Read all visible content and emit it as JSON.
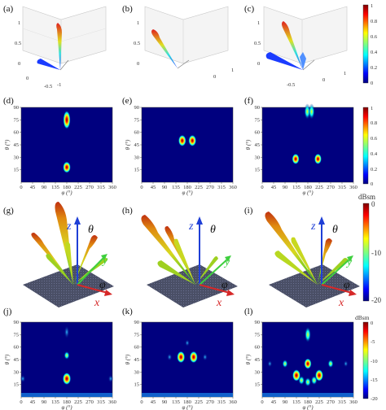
{
  "panel_labels": [
    "(a)",
    "(b)",
    "(c)",
    "(d)",
    "(e)",
    "(f)",
    "(g)",
    "(h)",
    "(i)",
    "(j)",
    "(k)",
    "(l)"
  ],
  "row1_3d": {
    "z_ticks": [
      "1",
      "0.5",
      "0"
    ],
    "x_ticks": [
      "-0.5",
      "-1"
    ],
    "y_ticks": [
      "0",
      "1"
    ],
    "panel_a_left_ticks": [
      "0"
    ],
    "panel_c_extra_ticks": [
      "-0.5",
      "0",
      "1"
    ]
  },
  "heatmap_axes": {
    "xlabel": "φ (°)",
    "ylabel": "θ (°)",
    "x_ticks": [
      "0",
      "45",
      "90",
      "135",
      "180",
      "225",
      "270",
      "315",
      "360"
    ],
    "y_ticks": [
      "90",
      "75",
      "60",
      "45",
      "30",
      "15"
    ]
  },
  "colorbar_norm": {
    "ticks": [
      "1",
      "0.8",
      "0.6",
      "0.4",
      "0.2",
      "0"
    ]
  },
  "colorbar_dbsm_3d": {
    "unit": "dBsm",
    "ticks": [
      "0",
      "-10",
      "-20"
    ]
  },
  "colorbar_dbsm_2d": {
    "unit": "dBsm",
    "ticks": [
      "0",
      "-5",
      "-10",
      "-15",
      "-20"
    ]
  },
  "axes3d_labels": {
    "z": "z",
    "theta": "θ",
    "y": "y",
    "phi": "φ",
    "x": "x"
  },
  "colors": {
    "background_map": "#00007f",
    "axis_z": "#1f3fd6",
    "axis_y": "#3ecf3e",
    "axis_x": "#d62828",
    "plate": "#4a4f66"
  },
  "chart_data": [
    {
      "panel": "(d)",
      "type": "heatmap",
      "xlim": [
        0,
        360
      ],
      "ylim": [
        0,
        90
      ],
      "hotspots": [
        {
          "phi": 180,
          "theta": 18,
          "level": 0.9
        },
        {
          "phi": 180,
          "theta": 75,
          "level": 0.8
        }
      ]
    },
    {
      "panel": "(e)",
      "type": "heatmap",
      "xlim": [
        0,
        360
      ],
      "ylim": [
        0,
        90
      ],
      "hotspots": [
        {
          "phi": 160,
          "theta": 50,
          "level": 0.9
        },
        {
          "phi": 200,
          "theta": 50,
          "level": 0.9
        }
      ]
    },
    {
      "panel": "(f)",
      "type": "heatmap",
      "xlim": [
        0,
        360
      ],
      "ylim": [
        0,
        90
      ],
      "hotspots": [
        {
          "phi": 132,
          "theta": 28,
          "level": 0.8
        },
        {
          "phi": 220,
          "theta": 28,
          "level": 0.8
        },
        {
          "phi": 178,
          "theta": 85,
          "level": 0.6
        },
        {
          "phi": 195,
          "theta": 85,
          "level": 0.6
        }
      ]
    },
    {
      "panel": "(j)",
      "type": "heatmap",
      "xlim": [
        0,
        360
      ],
      "ylim": [
        0,
        90
      ],
      "hotspots": [
        {
          "phi": 180,
          "theta": 22,
          "level": 1.0
        },
        {
          "phi": 180,
          "theta": 50,
          "level": 0.5
        },
        {
          "phi": 180,
          "theta": 78,
          "level": 0.4
        },
        {
          "phi": 0,
          "theta": 22,
          "level": 0.4
        },
        {
          "phi": 360,
          "theta": 22,
          "level": 0.4
        }
      ]
    },
    {
      "panel": "(k)",
      "type": "heatmap",
      "xlim": [
        0,
        360
      ],
      "ylim": [
        0,
        90
      ],
      "hotspots": [
        {
          "phi": 155,
          "theta": 48,
          "level": 0.95
        },
        {
          "phi": 205,
          "theta": 48,
          "level": 0.95
        },
        {
          "phi": 110,
          "theta": 48,
          "level": 0.35
        },
        {
          "phi": 250,
          "theta": 48,
          "level": 0.35
        },
        {
          "phi": 180,
          "theta": 65,
          "level": 0.3
        }
      ]
    },
    {
      "panel": "(l)",
      "type": "heatmap",
      "xlim": [
        0,
        360
      ],
      "ylim": [
        0,
        90
      ],
      "hotspots": [
        {
          "phi": 135,
          "theta": 26,
          "level": 0.95
        },
        {
          "phi": 225,
          "theta": 26,
          "level": 0.95
        },
        {
          "phi": 155,
          "theta": 20,
          "level": 0.6
        },
        {
          "phi": 180,
          "theta": 18,
          "level": 0.6
        },
        {
          "phi": 205,
          "theta": 20,
          "level": 0.6
        },
        {
          "phi": 180,
          "theta": 40,
          "level": 0.8
        },
        {
          "phi": 90,
          "theta": 40,
          "level": 0.5
        },
        {
          "phi": 270,
          "theta": 40,
          "level": 0.5
        },
        {
          "phi": 180,
          "theta": 75,
          "level": 0.6
        },
        {
          "phi": 30,
          "theta": 40,
          "level": 0.3
        },
        {
          "phi": 330,
          "theta": 40,
          "level": 0.3
        }
      ]
    }
  ]
}
